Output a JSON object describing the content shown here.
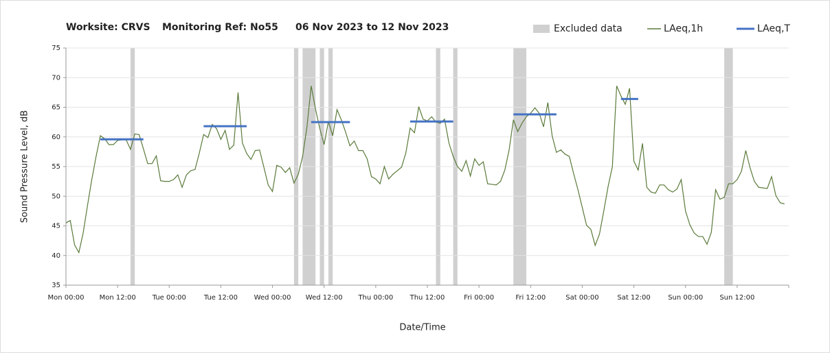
{
  "chart_data": {
    "type": "line",
    "title_parts": [
      "Worksite: CRVS",
      "Monitoring Ref: No55",
      "06 Nov 2023 to 12 Nov 2023"
    ],
    "xlabel": "Date/Time",
    "ylabel": "Sound Pressure Level, dB",
    "xlim": [
      0,
      168
    ],
    "xticks": [
      {
        "value": 0,
        "label": "Mon 00:00"
      },
      {
        "value": 12,
        "label": "Mon 12:00"
      },
      {
        "value": 24,
        "label": "Tue 00:00"
      },
      {
        "value": 36,
        "label": "Tue 12:00"
      },
      {
        "value": 48,
        "label": "Wed 00:00"
      },
      {
        "value": 60,
        "label": "Wed 12:00"
      },
      {
        "value": 72,
        "label": "Thu 00:00"
      },
      {
        "value": 84,
        "label": "Thu 12:00"
      },
      {
        "value": 96,
        "label": "Fri 00:00"
      },
      {
        "value": 108,
        "label": "Fri 12:00"
      },
      {
        "value": 120,
        "label": "Sat 00:00"
      },
      {
        "value": 132,
        "label": "Sat 12:00"
      },
      {
        "value": 144,
        "label": "Sun 00:00"
      },
      {
        "value": 156,
        "label": "Sun 12:00"
      }
    ],
    "ylim": [
      35,
      75
    ],
    "yticks": [
      35,
      40,
      45,
      50,
      55,
      60,
      65,
      70,
      75
    ],
    "grid": true,
    "legend": "top-right",
    "excluded": {
      "name": "Excluded data",
      "color": "#d0d0d0",
      "ranges": [
        [
          15,
          16
        ],
        [
          53,
          54
        ],
        [
          55,
          58
        ],
        [
          59,
          60
        ],
        [
          61,
          62
        ],
        [
          86,
          87
        ],
        [
          90,
          91
        ],
        [
          104,
          107
        ],
        [
          153,
          155
        ]
      ]
    },
    "x": [
      0,
      1,
      2,
      3,
      4,
      5,
      6,
      7,
      8,
      9,
      10,
      11,
      12,
      13,
      14,
      15,
      16,
      17,
      18,
      19,
      20,
      21,
      22,
      23,
      24,
      25,
      26,
      27,
      28,
      29,
      30,
      31,
      32,
      33,
      34,
      35,
      36,
      37,
      38,
      39,
      40,
      41,
      42,
      43,
      44,
      45,
      46,
      47,
      48,
      49,
      50,
      51,
      52,
      53,
      54,
      55,
      56,
      57,
      58,
      59,
      60,
      61,
      62,
      63,
      64,
      65,
      66,
      67,
      68,
      69,
      70,
      71,
      72,
      73,
      74,
      75,
      76,
      77,
      78,
      79,
      80,
      81,
      82,
      83,
      84,
      85,
      86,
      87,
      88,
      89,
      90,
      91,
      92,
      93,
      94,
      95,
      96,
      97,
      98,
      99,
      100,
      101,
      102,
      103,
      104,
      105,
      106,
      107,
      108,
      109,
      110,
      111,
      112,
      113,
      114,
      115,
      116,
      117,
      118,
      119,
      120,
      121,
      122,
      123,
      124,
      125,
      126,
      127,
      128,
      129,
      130,
      131,
      132,
      133,
      134,
      135,
      136,
      137,
      138,
      139,
      140,
      141,
      142,
      143,
      144,
      145,
      146,
      147,
      148,
      149,
      150,
      151,
      152,
      153,
      154,
      155,
      156,
      157,
      158,
      159,
      160,
      161,
      162,
      163,
      164,
      165,
      166,
      167
    ],
    "series": [
      {
        "name": "LAeq,1h",
        "color": "#5a7a3a",
        "values": [
          45.5,
          45.9,
          41.8,
          40.5,
          43.8,
          48.4,
          52.8,
          56.7,
          60.2,
          59.7,
          58.7,
          58.7,
          59.4,
          59.5,
          59.5,
          57.9,
          60.5,
          60.4,
          58.0,
          55.5,
          55.5,
          56.8,
          52.6,
          52.5,
          52.5,
          52.8,
          53.6,
          51.5,
          53.6,
          54.3,
          54.5,
          57.3,
          60.4,
          59.9,
          62.1,
          61.4,
          59.6,
          61.1,
          57.9,
          58.6,
          67.5,
          59.0,
          57.2,
          56.2,
          57.7,
          57.8,
          54.9,
          51.9,
          50.8,
          55.2,
          54.9,
          54.0,
          54.8,
          52.2,
          53.7,
          56.7,
          61.6,
          68.6,
          64.7,
          61.4,
          58.7,
          62.6,
          60.2,
          64.6,
          62.9,
          60.8,
          58.5,
          59.3,
          57.7,
          57.7,
          56.3,
          53.3,
          52.9,
          52.1,
          55.0,
          52.9,
          53.7,
          54.3,
          54.9,
          57.3,
          61.5,
          60.7,
          65.1,
          63.0,
          62.7,
          63.4,
          62.5,
          62.3,
          63.0,
          59.0,
          56.7,
          55.0,
          54.2,
          56.0,
          53.4,
          56.3,
          55.2,
          55.8,
          52.1,
          52.0,
          51.9,
          52.5,
          54.4,
          57.8,
          62.9,
          60.9,
          62.3,
          63.4,
          64.0,
          64.9,
          64.0,
          61.7,
          65.8,
          60.2,
          57.4,
          57.8,
          57.1,
          56.7,
          53.8,
          51.1,
          48.1,
          45.1,
          44.4,
          41.7,
          43.6,
          47.5,
          51.6,
          55.0,
          68.6,
          66.9,
          65.5,
          68.2,
          55.9,
          54.4,
          58.9,
          51.5,
          50.7,
          50.5,
          51.9,
          51.9,
          51.1,
          50.7,
          51.2,
          52.8,
          47.5,
          45.2,
          43.8,
          43.2,
          43.2,
          41.9,
          43.9,
          51.1,
          49.5,
          49.8,
          52.1,
          52.1,
          52.8,
          54.2,
          57.7,
          54.8,
          52.5,
          51.5,
          51.4,
          51.3,
          53.3,
          50.1,
          48.9,
          48.7
        ]
      }
    ],
    "laeq_t": {
      "name": "LAeq,T",
      "color": "#4472c4",
      "segments": [
        {
          "start": 8,
          "end": 18,
          "value": 59.6
        },
        {
          "start": 32,
          "end": 42,
          "value": 61.8
        },
        {
          "start": 57,
          "end": 66,
          "value": 62.5
        },
        {
          "start": 80,
          "end": 90,
          "value": 62.6
        },
        {
          "start": 104,
          "end": 114,
          "value": 63.8
        },
        {
          "start": 129,
          "end": 133,
          "value": 66.4
        }
      ]
    }
  }
}
